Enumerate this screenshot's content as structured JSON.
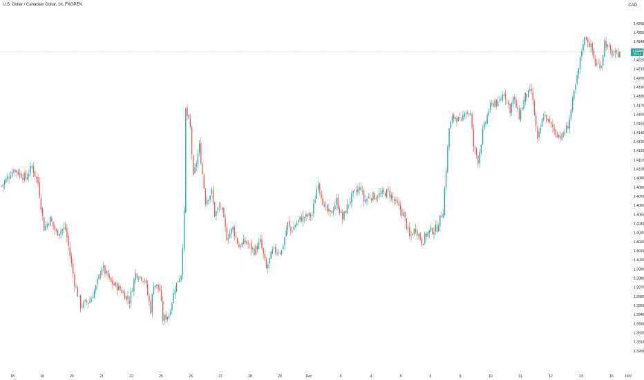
{
  "chart_title": "U.S. Dollar / Canadian Dollar, 1h, FXOPEN",
  "currency_label": "CAD",
  "chart_data": {
    "type": "candlestick",
    "symbol": "U.S. Dollar / Canadian Dollar",
    "interval": "1h",
    "source": "FXOPEN",
    "y_ticks": [
      "1.42600",
      "1.42500",
      "1.42400",
      "1.42300",
      "1.42200",
      "1.42100",
      "1.42000",
      "1.41900",
      "1.41800",
      "1.41700",
      "1.41600",
      "1.41500",
      "1.41400",
      "1.41300",
      "1.41200",
      "1.41100",
      "1.41000",
      "1.40900",
      "1.40800",
      "1.40700",
      "1.40600",
      "1.40500",
      "1.40400",
      "1.40300",
      "1.40200",
      "1.40100",
      "1.40000",
      "1.39900",
      "1.39800",
      "1.39700",
      "1.39600",
      "1.39500",
      "1.39400",
      "1.39300",
      "1.39200",
      "1.39100",
      "1.39000"
    ],
    "ylim": [
      1.3885,
      1.4275
    ],
    "x_ticks": [
      "18",
      "19",
      "20",
      "21",
      "22",
      "25",
      "26",
      "27",
      "28",
      "29",
      "Dec",
      "3",
      "4",
      "5",
      "6",
      "9",
      "10",
      "11",
      "12",
      "13",
      "16",
      "19:0"
    ],
    "last_price": "1.42288",
    "countdown": "25:12",
    "up_color": "#26a69a",
    "down_color": "#ef5350",
    "waypoints": [
      [
        0,
        1.4081
      ],
      [
        8,
        1.41
      ],
      [
        16,
        1.409
      ],
      [
        20,
        1.4103
      ],
      [
        24,
        1.4085
      ],
      [
        28,
        1.4035
      ],
      [
        32,
        1.4045
      ],
      [
        36,
        1.403
      ],
      [
        42,
        1.4035
      ],
      [
        48,
        1.3975
      ],
      [
        52,
        1.395
      ],
      [
        58,
        1.3955
      ],
      [
        62,
        1.397
      ],
      [
        66,
        1.3993
      ],
      [
        72,
        1.3975
      ],
      [
        78,
        1.3968
      ],
      [
        84,
        1.3955
      ],
      [
        88,
        1.3985
      ],
      [
        94,
        1.3979
      ],
      [
        98,
        1.3945
      ],
      [
        100,
        1.3975
      ],
      [
        104,
        1.3967
      ],
      [
        106,
        1.3935
      ],
      [
        110,
        1.394
      ],
      [
        114,
        1.397
      ],
      [
        118,
        1.3985
      ],
      [
        120,
        1.405
      ],
      [
        121,
        1.4165
      ],
      [
        124,
        1.4145
      ],
      [
        126,
        1.409
      ],
      [
        130,
        1.4125
      ],
      [
        134,
        1.4065
      ],
      [
        138,
        1.4075
      ],
      [
        140,
        1.405
      ],
      [
        144,
        1.406
      ],
      [
        148,
        1.4025
      ],
      [
        152,
        1.4035
      ],
      [
        156,
        1.4015
      ],
      [
        160,
        1.402
      ],
      [
        166,
        1.401
      ],
      [
        170,
        1.402
      ],
      [
        174,
        1.399
      ],
      [
        178,
        1.401
      ],
      [
        184,
        1.401
      ],
      [
        188,
        1.404
      ],
      [
        190,
        1.4032
      ],
      [
        196,
        1.4045
      ],
      [
        204,
        1.405
      ],
      [
        208,
        1.4087
      ],
      [
        212,
        1.4057
      ],
      [
        216,
        1.405
      ],
      [
        220,
        1.4065
      ],
      [
        224,
        1.4045
      ],
      [
        226,
        1.4055
      ],
      [
        230,
        1.407
      ],
      [
        236,
        1.408
      ],
      [
        238,
        1.4065
      ],
      [
        242,
        1.407
      ],
      [
        246,
        1.407
      ],
      [
        254,
        1.4075
      ],
      [
        260,
        1.406
      ],
      [
        264,
        1.405
      ],
      [
        268,
        1.4025
      ],
      [
        272,
        1.4035
      ],
      [
        276,
        1.402
      ],
      [
        280,
        1.403
      ],
      [
        286,
        1.4035
      ],
      [
        290,
        1.4055
      ],
      [
        294,
        1.4145
      ],
      [
        296,
        1.4155
      ],
      [
        298,
        1.4158
      ],
      [
        302,
        1.415
      ],
      [
        304,
        1.4165
      ],
      [
        308,
        1.416
      ],
      [
        310,
        1.4125
      ],
      [
        313,
        1.411
      ],
      [
        316,
        1.414
      ],
      [
        320,
        1.4165
      ],
      [
        324,
        1.4175
      ],
      [
        326,
        1.417
      ],
      [
        330,
        1.4185
      ],
      [
        334,
        1.4165
      ],
      [
        336,
        1.4178
      ],
      [
        340,
        1.4158
      ],
      [
        344,
        1.418
      ],
      [
        348,
        1.4185
      ],
      [
        350,
        1.416
      ],
      [
        352,
        1.413
      ],
      [
        356,
        1.416
      ],
      [
        360,
        1.415
      ],
      [
        364,
        1.414
      ],
      [
        368,
        1.4135
      ],
      [
        372,
        1.4148
      ],
      [
        374,
        1.4165
      ],
      [
        378,
        1.42
      ],
      [
        382,
        1.424
      ],
      [
        384,
        1.4245
      ],
      [
        388,
        1.423
      ],
      [
        390,
        1.4215
      ],
      [
        394,
        1.4215
      ],
      [
        396,
        1.424
      ],
      [
        400,
        1.4228
      ],
      [
        404,
        1.4225
      ],
      [
        406,
        1.4229
      ]
    ]
  }
}
